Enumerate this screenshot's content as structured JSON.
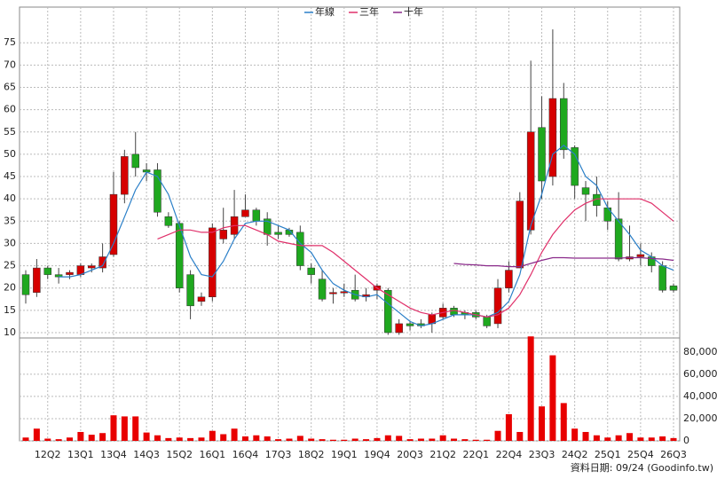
{
  "chart_data": {
    "type": "candlestick",
    "categories": [
      null,
      null,
      "12Q2",
      null,
      null,
      "13Q1",
      null,
      null,
      "13Q4",
      null,
      null,
      "14Q3",
      null,
      null,
      "15Q2",
      null,
      null,
      "16Q1",
      null,
      null,
      "16Q4",
      null,
      null,
      "17Q3",
      null,
      null,
      "18Q2",
      null,
      null,
      "19Q1",
      null,
      null,
      "19Q4",
      null,
      null,
      "20Q3",
      null,
      null,
      "21Q2",
      null,
      null,
      "22Q1",
      null,
      null,
      "22Q4",
      null,
      null,
      "23Q3",
      null,
      null,
      "24Q2",
      null,
      null,
      "25Q1",
      null,
      null,
      "25Q4",
      null,
      null,
      "26Q3"
    ],
    "open": [
      23,
      19,
      24.5,
      23,
      23,
      23,
      24.5,
      24.5,
      27.5,
      41,
      50,
      46.5,
      46.5,
      36,
      34.5,
      23,
      17,
      18,
      31,
      32,
      36,
      37.5,
      35.5,
      32.5,
      33,
      32.5,
      24.5,
      22,
      19,
      19,
      19.5,
      18,
      19.5,
      19.5,
      10,
      12,
      12,
      12,
      13.5,
      15.5,
      14.5,
      14.5,
      13.5,
      12,
      20,
      24.5,
      33,
      56,
      45,
      62.5,
      51.5,
      42.5,
      41,
      38,
      35.5,
      26.5,
      27,
      27,
      25,
      20.5
    ],
    "high": [
      24,
      26.5,
      25,
      24.5,
      24,
      25.5,
      25.5,
      30,
      46,
      51,
      55,
      48,
      48,
      37,
      35,
      24,
      19,
      34.5,
      38,
      42,
      41,
      38,
      37,
      34,
      33.5,
      34,
      25.5,
      24,
      20,
      21,
      23,
      20,
      21,
      20,
      13,
      12.5,
      13,
      14.5,
      16.5,
      16,
      15,
      15,
      14,
      22,
      26,
      41.5,
      71,
      63,
      78,
      66,
      52,
      44,
      45,
      39.5,
      41.5,
      34,
      30,
      28,
      26,
      21
    ],
    "low": [
      16.5,
      18,
      22,
      21,
      22,
      22.5,
      23.5,
      23.5,
      27,
      39,
      45,
      44,
      36,
      33.5,
      19,
      13,
      16,
      17,
      30,
      31,
      36,
      34,
      29.5,
      31,
      31.5,
      24,
      21,
      17,
      16.5,
      18,
      17,
      17,
      17.5,
      9.5,
      9.5,
      10.5,
      11,
      10,
      13,
      13.5,
      13,
      13,
      11,
      11,
      19,
      24.5,
      32,
      40,
      43,
      49,
      40,
      35,
      36,
      33,
      26,
      26,
      25,
      23.5,
      19,
      19
    ],
    "close": [
      18.5,
      24.5,
      23,
      22.5,
      23.5,
      25,
      25,
      27,
      41,
      49.5,
      47,
      46,
      37,
      34,
      20,
      16,
      18,
      33.5,
      33,
      36,
      37.5,
      35,
      32,
      32,
      32,
      25,
      23,
      17.5,
      19,
      19.2,
      17.5,
      18.5,
      20.5,
      10,
      12,
      11.5,
      11.5,
      14,
      15.5,
      14,
      14,
      13.5,
      11.5,
      20,
      24,
      39.5,
      55,
      44,
      62.5,
      51,
      43,
      41,
      38.5,
      35,
      26.5,
      27,
      27.5,
      25,
      19.5,
      19.5
    ],
    "up_color": "#d60000",
    "down_color": "#1fa81f",
    "ylim": [
      8.8,
      83
    ],
    "yticks": [
      10,
      15,
      20,
      25,
      30,
      35,
      40,
      45,
      50,
      55,
      60,
      65,
      70,
      75
    ],
    "grid": true,
    "series": [
      {
        "name": "年線",
        "color": "#2a7fc8",
        "values": [
          null,
          null,
          null,
          22.5,
          22.5,
          23,
          24,
          25,
          30,
          36,
          42,
          46,
          45,
          41,
          34,
          27,
          23,
          22.5,
          26,
          31,
          34.5,
          35,
          35,
          34,
          33,
          30,
          28,
          24,
          21,
          19.5,
          18.5,
          18,
          18.5,
          16.5,
          14.5,
          12.5,
          11.5,
          12,
          13,
          14,
          14,
          14,
          13.5,
          14.5,
          17,
          23,
          34,
          41,
          50,
          52,
          50,
          45,
          43,
          38,
          35,
          32,
          28.5,
          27,
          25,
          24
        ]
      },
      {
        "name": "三年",
        "color": "#e0306a",
        "values": [
          null,
          null,
          null,
          null,
          null,
          null,
          null,
          null,
          null,
          null,
          null,
          null,
          31,
          32,
          33,
          33,
          32.5,
          32.5,
          33.5,
          34,
          34,
          33,
          32,
          30.5,
          30,
          29.5,
          29.5,
          29.5,
          28,
          26,
          24,
          22,
          20,
          18.5,
          17,
          15.5,
          14.5,
          14,
          14.5,
          15,
          14.5,
          14,
          13.5,
          14,
          15.5,
          18.5,
          23,
          28,
          32,
          35,
          37.5,
          39,
          40,
          40,
          40,
          40,
          40,
          39,
          37,
          35
        ]
      },
      {
        "name": "十年",
        "color": "#8a2a8a",
        "values": [
          null,
          null,
          null,
          null,
          null,
          null,
          null,
          null,
          null,
          null,
          null,
          null,
          null,
          null,
          null,
          null,
          null,
          null,
          null,
          null,
          null,
          null,
          null,
          null,
          null,
          null,
          null,
          null,
          null,
          null,
          null,
          null,
          null,
          null,
          null,
          null,
          null,
          null,
          null,
          25.5,
          25.3,
          25.2,
          25,
          25,
          24.8,
          24.8,
          25.5,
          26.2,
          26.8,
          26.8,
          26.7,
          26.7,
          26.7,
          26.7,
          26.7,
          26.8,
          26.8,
          26.6,
          26.5,
          26.2
        ]
      }
    ],
    "volume": {
      "color": "#e80000",
      "values": [
        3000,
        11000,
        2000,
        1500,
        3000,
        8000,
        5500,
        7000,
        23000,
        22000,
        22000,
        7500,
        5000,
        2500,
        3000,
        2500,
        3000,
        9000,
        6000,
        11000,
        4000,
        5000,
        4000,
        1500,
        2000,
        4500,
        2000,
        1500,
        1000,
        1000,
        2000,
        1500,
        2500,
        5000,
        4500,
        1500,
        2000,
        2000,
        5000,
        2000,
        1500,
        1000,
        1000,
        9000,
        24000,
        8000,
        94000,
        31000,
        77000,
        34000,
        11000,
        8000,
        5000,
        3000,
        5000,
        7000,
        3000,
        3000,
        4000,
        2500
      ],
      "ylim": [
        0,
        91000
      ],
      "yticks": [
        0,
        {
          "value": 20000,
          "label": "20,000"
        },
        {
          "value": 40000,
          "label": "40,000"
        },
        {
          "value": 60000,
          "label": "60,000"
        },
        {
          "value": 80000,
          "label": "80,000"
        }
      ]
    },
    "footer": "資料日期: 09/24 (Goodinfo.tw)"
  }
}
